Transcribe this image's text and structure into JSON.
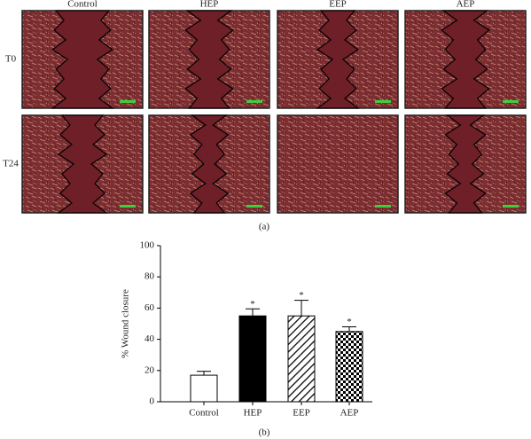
{
  "panel_a": {
    "columns": [
      "Control",
      "HEP",
      "EEP",
      "AEP"
    ],
    "rows": [
      "T0",
      "T24"
    ],
    "caption": "(a)"
  },
  "chart_data": {
    "type": "bar",
    "ylabel": "% Wound closure",
    "categories": [
      "Control",
      "HEP",
      "EEP",
      "AEP"
    ],
    "values": [
      17,
      55,
      55,
      45
    ],
    "errors": [
      2.5,
      4.5,
      10,
      3
    ],
    "fills": [
      "white",
      "black",
      "hatch",
      "checker"
    ],
    "annotations": [
      {
        "category": "HEP",
        "text": "*"
      },
      {
        "category": "EEP",
        "text": "*"
      },
      {
        "category": "AEP",
        "text": "*"
      }
    ],
    "ylim": [
      0,
      100
    ],
    "yticks": [
      0,
      20,
      40,
      60,
      80,
      100
    ],
    "caption": "(b)"
  }
}
